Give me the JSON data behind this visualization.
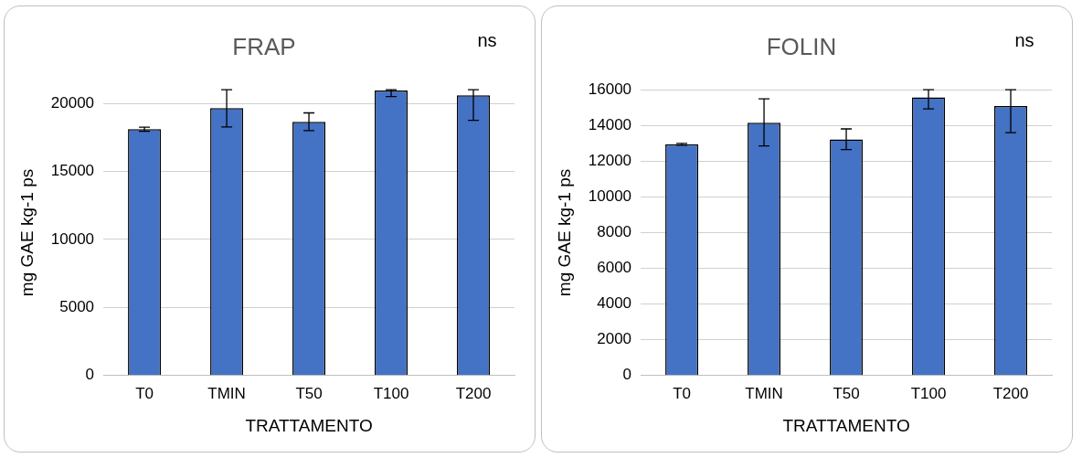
{
  "chart_data": [
    {
      "type": "bar",
      "title": "FRAP",
      "xlabel": "TRATTAMENTO",
      "ylabel": "mg GAE kg-1 ps",
      "annotations": [
        "ns"
      ],
      "categories": [
        "T0",
        "TMIN",
        "T50",
        "T100",
        "T200"
      ],
      "values": [
        18100,
        19650,
        18650,
        20950,
        20600
      ],
      "errors": [
        [
          17950,
          18250
        ],
        [
          18270,
          21000
        ],
        [
          18000,
          19300
        ],
        [
          20500,
          21000
        ],
        [
          18750,
          21000
        ]
      ],
      "color": "#4472c4",
      "ylim": [
        0,
        21000
      ],
      "yticks": [
        0,
        5000,
        10000,
        15000,
        20000
      ],
      "grid": "y",
      "legend": false
    },
    {
      "type": "bar",
      "title": "FOLIN",
      "xlabel": "TRATTAMENTO",
      "ylabel": "mg GAE kg-1 ps",
      "annotations": [
        "ns"
      ],
      "categories": [
        "T0",
        "TMIN",
        "T50",
        "T100",
        "T200"
      ],
      "values": [
        12950,
        14150,
        13220,
        15580,
        15090
      ],
      "errors": [
        [
          12900,
          13000
        ],
        [
          12860,
          15490
        ],
        [
          12650,
          13810
        ],
        [
          14930,
          16000
        ],
        [
          13600,
          16000
        ]
      ],
      "color": "#4472c4",
      "ylim": [
        0,
        16000
      ],
      "yticks": [
        0,
        2000,
        4000,
        6000,
        8000,
        10000,
        12000,
        14000,
        16000
      ],
      "grid": "y",
      "legend": false
    }
  ]
}
